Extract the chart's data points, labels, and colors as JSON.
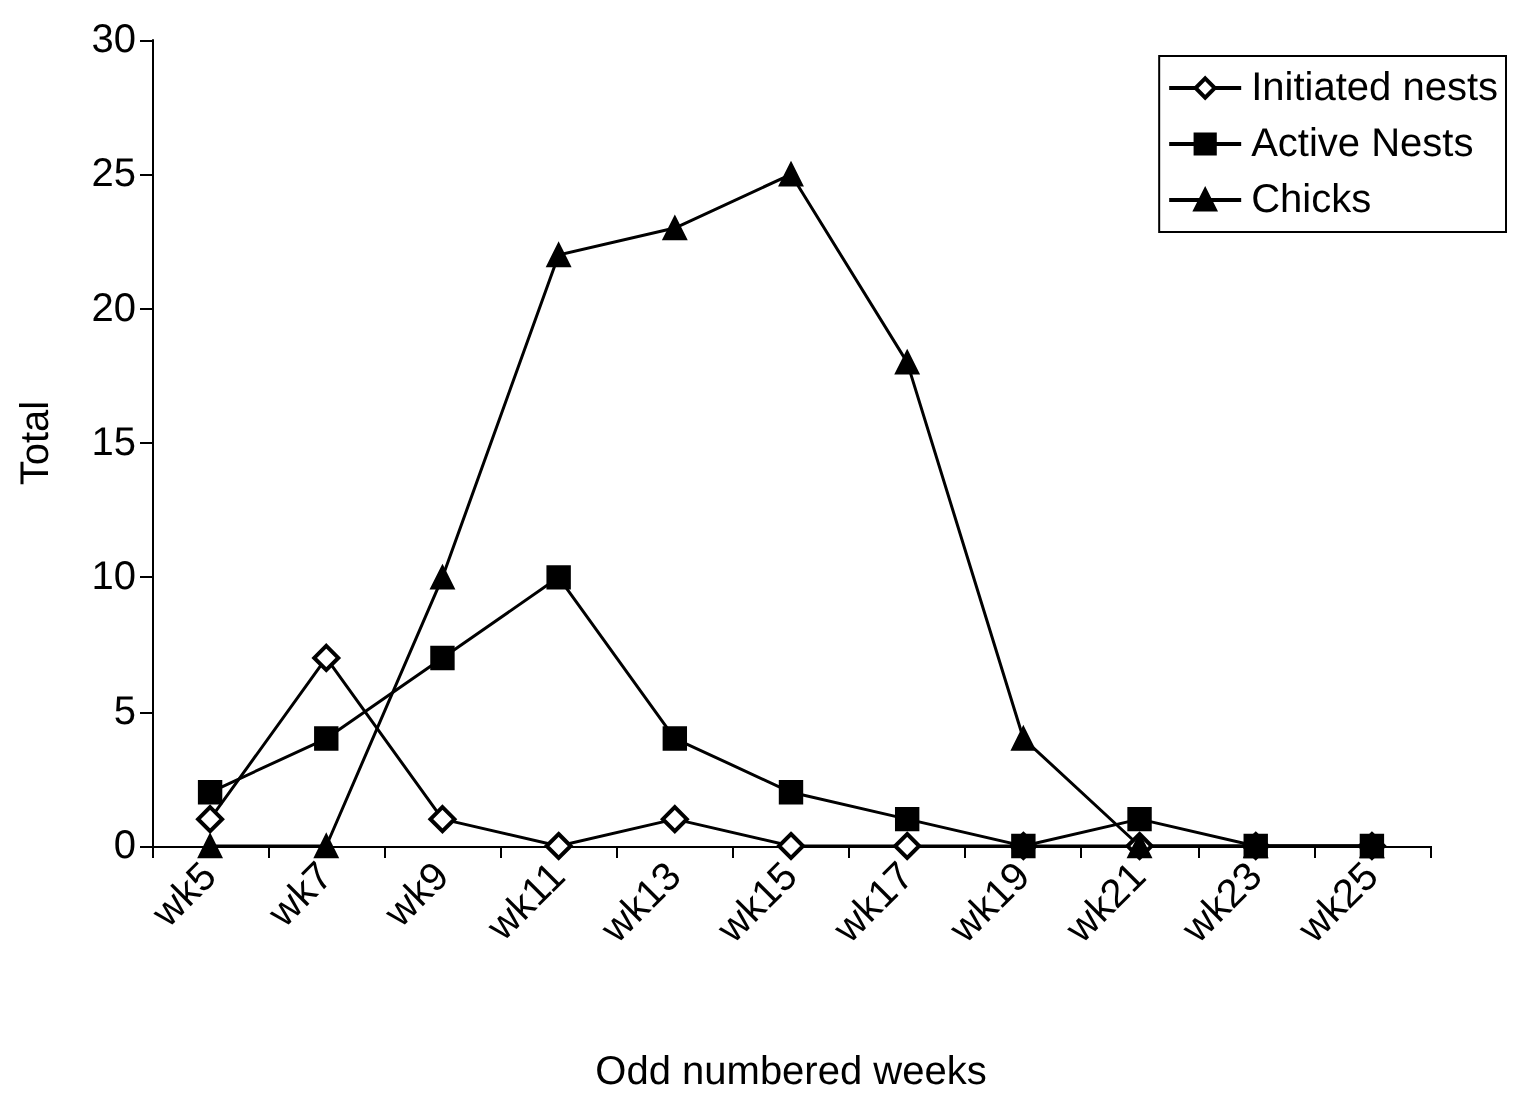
{
  "chart_data": {
    "type": "line",
    "xlabel": "Odd numbered weeks",
    "ylabel": "Total",
    "categories": [
      "wk5",
      "wk7",
      "wk9",
      "wk11",
      "wk13",
      "wk15",
      "wk17",
      "wk19",
      "wk21",
      "wk23",
      "wk25"
    ],
    "series": [
      {
        "name": "Initiated nests",
        "color": "#000000",
        "marker": "diamond",
        "values": [
          1,
          7,
          1,
          0,
          1,
          0,
          0,
          0,
          0,
          0,
          0
        ]
      },
      {
        "name": "Active Nests",
        "color": "#000000",
        "marker": "square",
        "values": [
          2,
          4,
          7,
          10,
          4,
          2,
          1,
          0,
          1,
          0,
          0
        ]
      },
      {
        "name": "Chicks",
        "color": "#000000",
        "marker": "triangle",
        "values": [
          0,
          0,
          10,
          22,
          23,
          25,
          18,
          4,
          0,
          0,
          0
        ]
      }
    ],
    "ylim": [
      0,
      30
    ],
    "yticks": [
      0,
      5,
      10,
      15,
      20,
      25,
      30
    ],
    "grid": false,
    "legend": "top right",
    "line_style": "solid"
  }
}
